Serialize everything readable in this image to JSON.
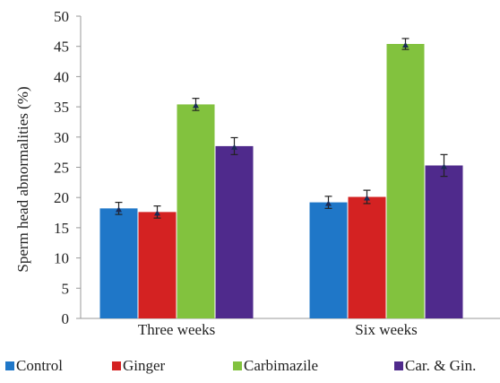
{
  "chart_data": {
    "type": "bar",
    "title": "",
    "xlabel": "",
    "ylabel": "Sperm head abnormalities (%)",
    "ylim": [
      0,
      50
    ],
    "yticks": [
      0,
      5,
      10,
      15,
      20,
      25,
      30,
      35,
      40,
      45,
      50
    ],
    "categories": [
      "Three weeks",
      "Six weeks"
    ],
    "series": [
      {
        "name": "Control",
        "color": "#1f77c8",
        "values": [
          18.2,
          19.2
        ],
        "errors": [
          1.0,
          1.0
        ]
      },
      {
        "name": "Ginger",
        "color": "#d42222",
        "values": [
          17.6,
          20.1
        ],
        "errors": [
          1.0,
          1.1
        ]
      },
      {
        "name": "Carbimazile",
        "color": "#82c23e",
        "values": [
          35.4,
          45.4
        ],
        "errors": [
          1.0,
          0.9
        ]
      },
      {
        "name": "Car. & Gin.",
        "color": "#4f2a8c",
        "values": [
          28.5,
          25.3
        ],
        "errors": [
          1.4,
          1.8
        ]
      }
    ],
    "grid": false,
    "legend_position": "bottom"
  }
}
